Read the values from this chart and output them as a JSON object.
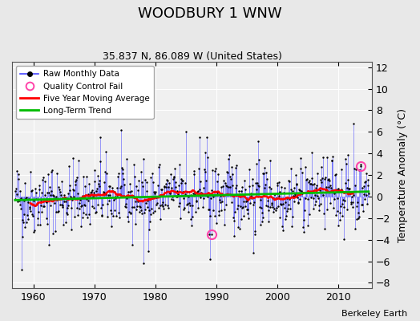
{
  "title": "WOODBURY 1 WNW",
  "subtitle": "35.837 N, 86.089 W (United States)",
  "ylabel": "Temperature Anomaly (°C)",
  "credit": "Berkeley Earth",
  "ylim": [
    -8.5,
    12.5
  ],
  "yticks": [
    -8,
    -6,
    -4,
    -2,
    0,
    2,
    4,
    6,
    8,
    10,
    12
  ],
  "xlim": [
    1956.5,
    2015.5
  ],
  "xticks": [
    1960,
    1970,
    1980,
    1990,
    2000,
    2010
  ],
  "start_year": 1957,
  "end_year": 2014,
  "fig_bg_color": "#e8e8e8",
  "plot_bg_color": "#f0f0f0",
  "line_color": "#4444ff",
  "line_alpha": 0.6,
  "dot_color": "#000000",
  "ma_color": "#ff0000",
  "trend_color": "#00bb00",
  "qc_color": "#ff44aa",
  "seed": 42,
  "trend_slope": 0.012,
  "trend_intercept": -0.25,
  "noise_std": 1.6
}
